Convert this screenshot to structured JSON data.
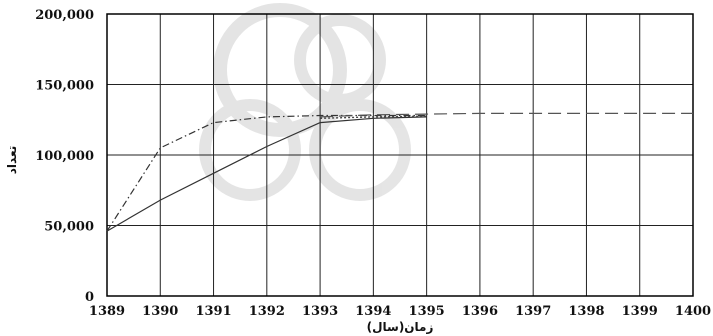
{
  "chart_data": {
    "type": "line",
    "title": "",
    "xlabel": "زمان(سال)",
    "ylabel": "تعداد",
    "x": [
      1389,
      1390,
      1391,
      1392,
      1393,
      1394,
      1395,
      1396,
      1397,
      1398,
      1399,
      1400
    ],
    "xlim": [
      1389,
      1400
    ],
    "ylim": [
      0,
      200000
    ],
    "x_ticks": [
      "1389",
      "1390",
      "1391",
      "1392",
      "1393",
      "1394",
      "1395",
      "1396",
      "1397",
      "1398",
      "1399",
      "1400"
    ],
    "y_ticks": [
      "0",
      "50,000",
      "100,000",
      "150,000",
      "200,000"
    ],
    "y_tick_values": [
      0,
      50000,
      100000,
      150000,
      200000
    ],
    "grid": true,
    "series": [
      {
        "style": "solid",
        "color": "#333333",
        "x": [
          1389,
          1390,
          1391,
          1392,
          1393,
          1394,
          1395
        ],
        "values": [
          46000,
          68000,
          87000,
          106000,
          123000,
          126000,
          127000
        ]
      },
      {
        "style": "dashdot",
        "color": "#333333",
        "x": [
          1389,
          1390,
          1391,
          1392,
          1393,
          1394,
          1395
        ],
        "values": [
          46000,
          105000,
          123000,
          127000,
          128000,
          128000,
          128000
        ]
      },
      {
        "style": "dashed",
        "color": "#555555",
        "x": [
          1393,
          1394,
          1395,
          1396,
          1397,
          1398,
          1399,
          1400
        ],
        "values": [
          127000,
          128500,
          129000,
          129500,
          129500,
          129500,
          129500,
          129500
        ]
      },
      {
        "style": "dotted",
        "color": "#444444",
        "x": [
          1393,
          1394,
          1395
        ],
        "values": [
          126000,
          127000,
          127500
        ]
      }
    ]
  }
}
